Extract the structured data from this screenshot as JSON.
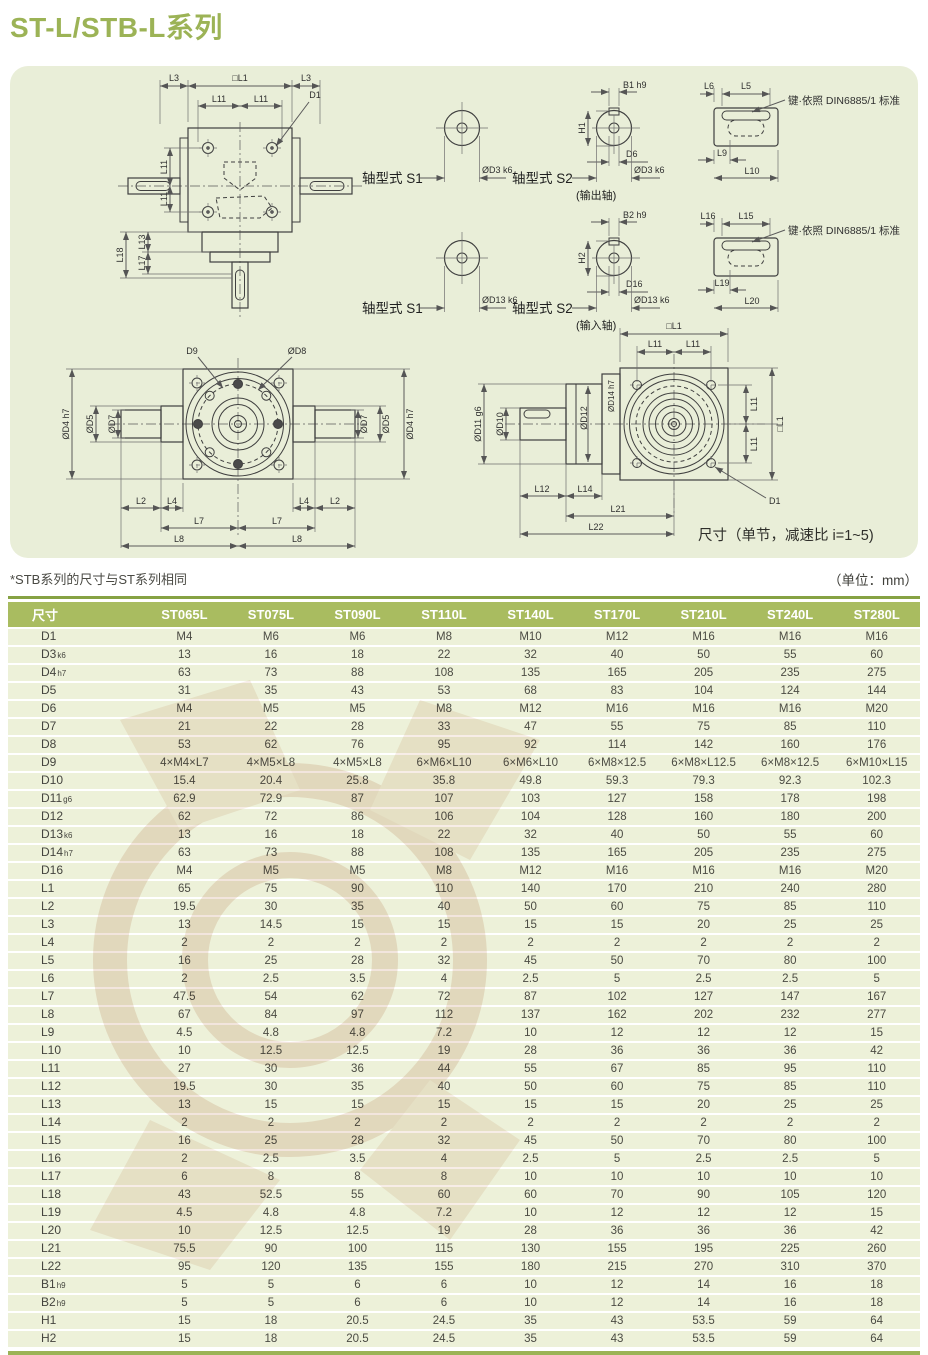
{
  "page": {
    "title": "ST-L/STB-L系列",
    "note_left": "*STB系列的尺寸与ST系列相同",
    "note_right": "（单位：mm）"
  },
  "colors": {
    "accent_green": "#9cb356",
    "header_bg": "#a9bc60",
    "panel_bg": "#e9eed8",
    "row_bg": "#edf1d9",
    "border_green": "#86a243",
    "watermark_pink": "#e3c4b4",
    "watermark_gray": "#dcdcdc"
  },
  "drawings": {
    "front": {
      "l3_left": "L3",
      "l1_top": "□L1",
      "l3_right": "L3",
      "l11_a": "L11",
      "l11_b": "L11",
      "d1": "D1",
      "l11_c": "L11",
      "l11_d": "L11",
      "l18": "L18",
      "l13": "L13",
      "l17": "L17"
    },
    "s1_out": {
      "label": "轴型式 S1",
      "dia": "ØD3 k6"
    },
    "s2_out": {
      "label": "轴型式 S2",
      "sub": "(输出轴)",
      "b": "B1 h9",
      "h": "H1",
      "d": "D6",
      "dia": "ØD3 k6"
    },
    "key_out": {
      "l6": "L6",
      "l5": "L5",
      "note": "键·依照 DIN6885/1 标准",
      "l9": "L9",
      "l10": "L10"
    },
    "s1_in": {
      "label": "轴型式 S1",
      "dia": "ØD13 k6"
    },
    "s2_in": {
      "label": "轴型式 S2",
      "sub": "(输入轴)",
      "b": "B2 h9",
      "h": "H2",
      "d": "D16",
      "dia": "ØD13 k6"
    },
    "key_in": {
      "l16": "L16",
      "l15": "L15",
      "note": "键·依照 DIN6885/1 标准",
      "l19": "L19",
      "l20": "L20"
    },
    "side": {
      "d9": "D9",
      "d8": "ØD8",
      "d4l": "ØD4 h7",
      "d5l": "ØD5",
      "d7l": "ØD7",
      "d7r": "ØD7",
      "d5r": "ØD5",
      "d4r": "ØD4 h7",
      "l2l": "L2",
      "l4l": "L4",
      "l4r": "L4",
      "l2r": "L2",
      "l7l": "L7",
      "l7r": "L7",
      "l8l": "L8",
      "l8r": "L8"
    },
    "flange": {
      "l1_top": "□L1",
      "l11_a": "L11",
      "l11_b": "L11",
      "d14": "ØD14 h7",
      "d12": "ØD12",
      "d11": "ØD11 g6",
      "d10": "ØD10",
      "l11_c": "L11",
      "l11_d": "L11",
      "l1_right": "□L1",
      "d1": "D1",
      "l12": "L12",
      "l14": "L14",
      "l21": "L21",
      "l22": "L22",
      "note": "尺寸（单节，减速比 i=1~5)"
    }
  },
  "table": {
    "columns": [
      "尺寸",
      "ST065L",
      "ST075L",
      "ST090L",
      "ST110L",
      "ST140L",
      "ST170L",
      "ST210L",
      "ST240L",
      "ST280L"
    ],
    "rows": [
      {
        "label": "D1",
        "sub": "",
        "values": [
          "M4",
          "M6",
          "M6",
          "M8",
          "M10",
          "M12",
          "M16",
          "M16",
          "M16"
        ]
      },
      {
        "label": "D3",
        "sub": "k6",
        "values": [
          "13",
          "16",
          "18",
          "22",
          "32",
          "40",
          "50",
          "55",
          "60"
        ]
      },
      {
        "label": "D4",
        "sub": "h7",
        "values": [
          "63",
          "73",
          "88",
          "108",
          "135",
          "165",
          "205",
          "235",
          "275"
        ]
      },
      {
        "label": "D5",
        "sub": "",
        "values": [
          "31",
          "35",
          "43",
          "53",
          "68",
          "83",
          "104",
          "124",
          "144"
        ]
      },
      {
        "label": "D6",
        "sub": "",
        "values": [
          "M4",
          "M5",
          "M5",
          "M8",
          "M12",
          "M16",
          "M16",
          "M16",
          "M20"
        ]
      },
      {
        "label": "D7",
        "sub": "",
        "values": [
          "21",
          "22",
          "28",
          "33",
          "47",
          "55",
          "75",
          "85",
          "110"
        ]
      },
      {
        "label": "D8",
        "sub": "",
        "values": [
          "53",
          "62",
          "76",
          "95",
          "92",
          "114",
          "142",
          "160",
          "176"
        ]
      },
      {
        "label": "D9",
        "sub": "",
        "values": [
          "4×M4×L7",
          "4×M5×L8",
          "4×M5×L8",
          "6×M6×L10",
          "6×M6×L10",
          "6×M8×12.5",
          "6×M8×L12.5",
          "6×M8×12.5",
          "6×M10×L15"
        ]
      },
      {
        "label": "D10",
        "sub": "",
        "values": [
          "15.4",
          "20.4",
          "25.8",
          "35.8",
          "49.8",
          "59.3",
          "79.3",
          "92.3",
          "102.3"
        ]
      },
      {
        "label": "D11",
        "sub": "g6",
        "values": [
          "62.9",
          "72.9",
          "87",
          "107",
          "103",
          "127",
          "158",
          "178",
          "198"
        ]
      },
      {
        "label": "D12",
        "sub": "",
        "values": [
          "62",
          "72",
          "86",
          "106",
          "104",
          "128",
          "160",
          "180",
          "200"
        ]
      },
      {
        "label": "D13",
        "sub": "k6",
        "values": [
          "13",
          "16",
          "18",
          "22",
          "32",
          "40",
          "50",
          "55",
          "60"
        ]
      },
      {
        "label": "D14",
        "sub": "h7",
        "values": [
          "63",
          "73",
          "88",
          "108",
          "135",
          "165",
          "205",
          "235",
          "275"
        ]
      },
      {
        "label": "D16",
        "sub": "",
        "values": [
          "M4",
          "M5",
          "M5",
          "M8",
          "M12",
          "M16",
          "M16",
          "M16",
          "M20"
        ]
      },
      {
        "label": "L1",
        "sub": "",
        "values": [
          "65",
          "75",
          "90",
          "110",
          "140",
          "170",
          "210",
          "240",
          "280"
        ]
      },
      {
        "label": "L2",
        "sub": "",
        "values": [
          "19.5",
          "30",
          "35",
          "40",
          "50",
          "60",
          "75",
          "85",
          "110"
        ]
      },
      {
        "label": "L3",
        "sub": "",
        "values": [
          "13",
          "14.5",
          "15",
          "15",
          "15",
          "15",
          "20",
          "25",
          "25"
        ]
      },
      {
        "label": "L4",
        "sub": "",
        "values": [
          "2",
          "2",
          "2",
          "2",
          "2",
          "2",
          "2",
          "2",
          "2"
        ]
      },
      {
        "label": "L5",
        "sub": "",
        "values": [
          "16",
          "25",
          "28",
          "32",
          "45",
          "50",
          "70",
          "80",
          "100"
        ]
      },
      {
        "label": "L6",
        "sub": "",
        "values": [
          "2",
          "2.5",
          "3.5",
          "4",
          "2.5",
          "5",
          "2.5",
          "2.5",
          "5"
        ]
      },
      {
        "label": "L7",
        "sub": "",
        "values": [
          "47.5",
          "54",
          "62",
          "72",
          "87",
          "102",
          "127",
          "147",
          "167"
        ]
      },
      {
        "label": "L8",
        "sub": "",
        "values": [
          "67",
          "84",
          "97",
          "112",
          "137",
          "162",
          "202",
          "232",
          "277"
        ]
      },
      {
        "label": "L9",
        "sub": "",
        "values": [
          "4.5",
          "4.8",
          "4.8",
          "7.2",
          "10",
          "12",
          "12",
          "12",
          "15"
        ]
      },
      {
        "label": "L10",
        "sub": "",
        "values": [
          "10",
          "12.5",
          "12.5",
          "19",
          "28",
          "36",
          "36",
          "36",
          "42"
        ]
      },
      {
        "label": "L11",
        "sub": "",
        "values": [
          "27",
          "30",
          "36",
          "44",
          "55",
          "67",
          "85",
          "95",
          "110"
        ]
      },
      {
        "label": "L12",
        "sub": "",
        "values": [
          "19.5",
          "30",
          "35",
          "40",
          "50",
          "60",
          "75",
          "85",
          "110"
        ]
      },
      {
        "label": "L13",
        "sub": "",
        "values": [
          "13",
          "15",
          "15",
          "15",
          "15",
          "15",
          "20",
          "25",
          "25"
        ]
      },
      {
        "label": "L14",
        "sub": "",
        "values": [
          "2",
          "2",
          "2",
          "2",
          "2",
          "2",
          "2",
          "2",
          "2"
        ]
      },
      {
        "label": "L15",
        "sub": "",
        "values": [
          "16",
          "25",
          "28",
          "32",
          "45",
          "50",
          "70",
          "80",
          "100"
        ]
      },
      {
        "label": "L16",
        "sub": "",
        "values": [
          "2",
          "2.5",
          "3.5",
          "4",
          "2.5",
          "5",
          "2.5",
          "2.5",
          "5"
        ]
      },
      {
        "label": "L17",
        "sub": "",
        "values": [
          "6",
          "8",
          "8",
          "8",
          "10",
          "10",
          "10",
          "10",
          "10"
        ]
      },
      {
        "label": "L18",
        "sub": "",
        "values": [
          "43",
          "52.5",
          "55",
          "60",
          "60",
          "70",
          "90",
          "105",
          "120"
        ]
      },
      {
        "label": "L19",
        "sub": "",
        "values": [
          "4.5",
          "4.8",
          "4.8",
          "7.2",
          "10",
          "12",
          "12",
          "12",
          "15"
        ]
      },
      {
        "label": "L20",
        "sub": "",
        "values": [
          "10",
          "12.5",
          "12.5",
          "19",
          "28",
          "36",
          "36",
          "36",
          "42"
        ]
      },
      {
        "label": "L21",
        "sub": "",
        "values": [
          "75.5",
          "90",
          "100",
          "115",
          "130",
          "155",
          "195",
          "225",
          "260"
        ]
      },
      {
        "label": "L22",
        "sub": "",
        "values": [
          "95",
          "120",
          "135",
          "155",
          "180",
          "215",
          "270",
          "310",
          "370"
        ]
      },
      {
        "label": "B1",
        "sub": "h9",
        "values": [
          "5",
          "5",
          "6",
          "6",
          "10",
          "12",
          "14",
          "16",
          "18"
        ]
      },
      {
        "label": "B2",
        "sub": "h9",
        "values": [
          "5",
          "5",
          "6",
          "6",
          "10",
          "12",
          "14",
          "16",
          "18"
        ]
      },
      {
        "label": "H1",
        "sub": "",
        "values": [
          "15",
          "18",
          "20.5",
          "24.5",
          "35",
          "43",
          "53.5",
          "59",
          "64"
        ]
      },
      {
        "label": "H2",
        "sub": "",
        "values": [
          "15",
          "18",
          "20.5",
          "24.5",
          "35",
          "43",
          "53.5",
          "59",
          "64"
        ]
      }
    ]
  }
}
